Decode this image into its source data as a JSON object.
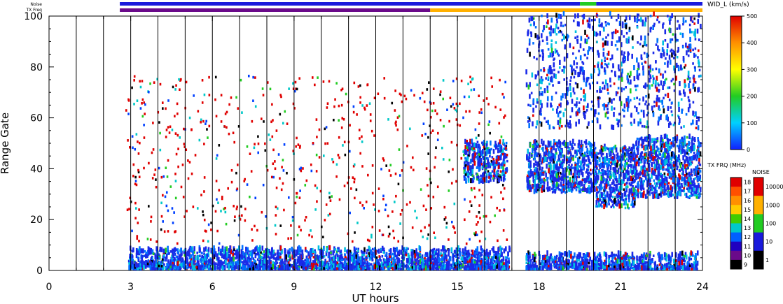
{
  "chart_data": {
    "type": "scatter",
    "xlabel": "UT hours",
    "ylabel": "Range Gate",
    "xlim": [
      0,
      24
    ],
    "ylim": [
      0,
      100
    ],
    "x_ticks": [
      0,
      3,
      6,
      9,
      12,
      15,
      18,
      21,
      24
    ],
    "y_ticks": [
      0,
      20,
      40,
      60,
      80,
      100
    ],
    "top_strips": {
      "noise_label": "Noise",
      "txfreq_label": "TX Freq",
      "noise_segments": [
        {
          "x0": 2.6,
          "x1": 19.5,
          "color": "#1a1adc"
        },
        {
          "x0": 19.5,
          "x1": 20.1,
          "color": "#22cc22"
        },
        {
          "x0": 20.1,
          "x1": 24.0,
          "color": "#1a1adc"
        }
      ],
      "txfreq_segments": [
        {
          "x0": 2.6,
          "x1": 14.0,
          "color": "#6a0a8a"
        },
        {
          "x0": 14.0,
          "x1": 24.0,
          "color": "#ffb000"
        }
      ]
    },
    "colorbar_width": {
      "title": "WID_L (km/s)",
      "ticks": [
        "500",
        "400",
        "300",
        "200",
        "100",
        "0"
      ]
    },
    "colorbar_txfreq": {
      "title": "TX FRQ (MHz)",
      "ticks": [
        "18",
        "17",
        "16",
        "15",
        "14",
        "13",
        "12",
        "11",
        "10",
        "9"
      ],
      "colors": [
        "#e00000",
        "#ff5000",
        "#ff9000",
        "#ffcc00",
        "#40cc00",
        "#00c8c8",
        "#0060ff",
        "#2000c0",
        "#6a0a8a",
        "#000000"
      ]
    },
    "colorbar_noise": {
      "title": "NOISE",
      "ticks": [
        "10000",
        "1000",
        "100",
        "10",
        "1"
      ],
      "colors": [
        "#e00000",
        "#ffb000",
        "#22cc22",
        "#1a1adc",
        "#000000"
      ]
    },
    "scatter_regions": [
      {
        "name": "near-range",
        "x0": 2.9,
        "x1": 16.9,
        "g0": 0,
        "g1": 8
      },
      {
        "name": "near-range",
        "x0": 17.5,
        "x1": 23.8,
        "g0": 0,
        "g1": 6
      },
      {
        "name": "band-40",
        "x0": 15.2,
        "x1": 16.8,
        "g0": 34,
        "g1": 50
      },
      {
        "name": "band-40",
        "x0": 17.5,
        "x1": 20.0,
        "g0": 30,
        "g1": 50
      },
      {
        "name": "band-40",
        "x0": 20.0,
        "x1": 21.5,
        "g0": 24,
        "g1": 48
      },
      {
        "name": "band-40",
        "x0": 21.5,
        "x1": 23.9,
        "g0": 28,
        "g1": 52
      },
      {
        "name": "scattered",
        "x0": 2.8,
        "x1": 16.8,
        "g0": 10,
        "g1": 76
      },
      {
        "name": "high-range",
        "x0": 17.5,
        "x1": 23.9,
        "g0": 55,
        "g1": 100
      }
    ]
  }
}
